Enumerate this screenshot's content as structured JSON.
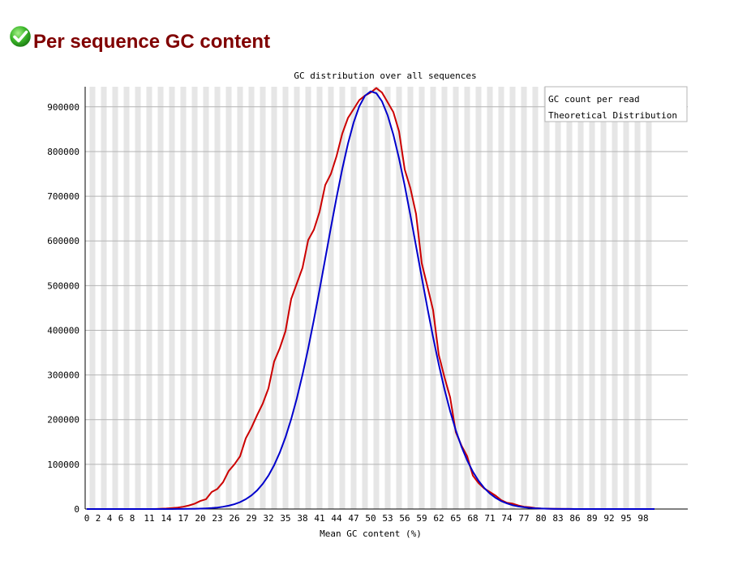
{
  "header": {
    "icon": "pass-check-icon",
    "title": "Per sequence GC content",
    "status_color": "#2fa51c",
    "title_color": "#800000"
  },
  "chart_data": {
    "type": "line",
    "title": "GC distribution over all sequences",
    "xlabel": "Mean GC content (%)",
    "ylabel": "",
    "xlim": [
      0,
      100
    ],
    "ylim": [
      0,
      945000
    ],
    "yticks": [
      0,
      100000,
      200000,
      300000,
      400000,
      500000,
      600000,
      700000,
      800000,
      900000
    ],
    "xtick_labels": [
      "0",
      "2",
      "4",
      "6",
      "8",
      "11",
      "14",
      "17",
      "20",
      "23",
      "26",
      "29",
      "32",
      "35",
      "38",
      "41",
      "44",
      "47",
      "50",
      "53",
      "56",
      "59",
      "62",
      "65",
      "68",
      "71",
      "74",
      "77",
      "80",
      "83",
      "86",
      "89",
      "92",
      "95",
      "98"
    ],
    "grid": true,
    "legend": "top-right",
    "series": [
      {
        "name": "GC count per read",
        "color": "#cc0000",
        "x": [
          0,
          12,
          14,
          15,
          16,
          17,
          18,
          19,
          20,
          21,
          22,
          23,
          24,
          25,
          26,
          27,
          28,
          29,
          30,
          31,
          32,
          33,
          34,
          35,
          36,
          37,
          38,
          39,
          40,
          41,
          42,
          43,
          44,
          45,
          46,
          47,
          48,
          49,
          50,
          51,
          52,
          53,
          54,
          55,
          56,
          57,
          58,
          59,
          60,
          61,
          62,
          63,
          64,
          65,
          66,
          67,
          68,
          69,
          70,
          71,
          72,
          73,
          74,
          75,
          76,
          77,
          78,
          79,
          80,
          82,
          84,
          86,
          100
        ],
        "y": [
          0,
          0,
          1000,
          2000,
          3000,
          5000,
          8000,
          12000,
          18000,
          22000,
          38000,
          45000,
          60000,
          85000,
          100000,
          118000,
          158000,
          182000,
          210000,
          236000,
          270000,
          330000,
          360000,
          398000,
          470000,
          505000,
          540000,
          602000,
          625000,
          665000,
          725000,
          750000,
          790000,
          840000,
          875000,
          895000,
          915000,
          925000,
          932000,
          942000,
          932000,
          910000,
          888000,
          845000,
          760000,
          718000,
          660000,
          550000,
          498000,
          445000,
          345000,
          295000,
          250000,
          172000,
          142000,
          118000,
          75000,
          58000,
          46000,
          38000,
          30000,
          20000,
          14000,
          12000,
          8000,
          5000,
          4000,
          2000,
          1000,
          500,
          200,
          0,
          0
        ]
      },
      {
        "name": "Theoretical Distribution",
        "color": "#0000cc",
        "mean": 50.2,
        "sd": 8.1,
        "peak": 935000
      }
    ]
  }
}
